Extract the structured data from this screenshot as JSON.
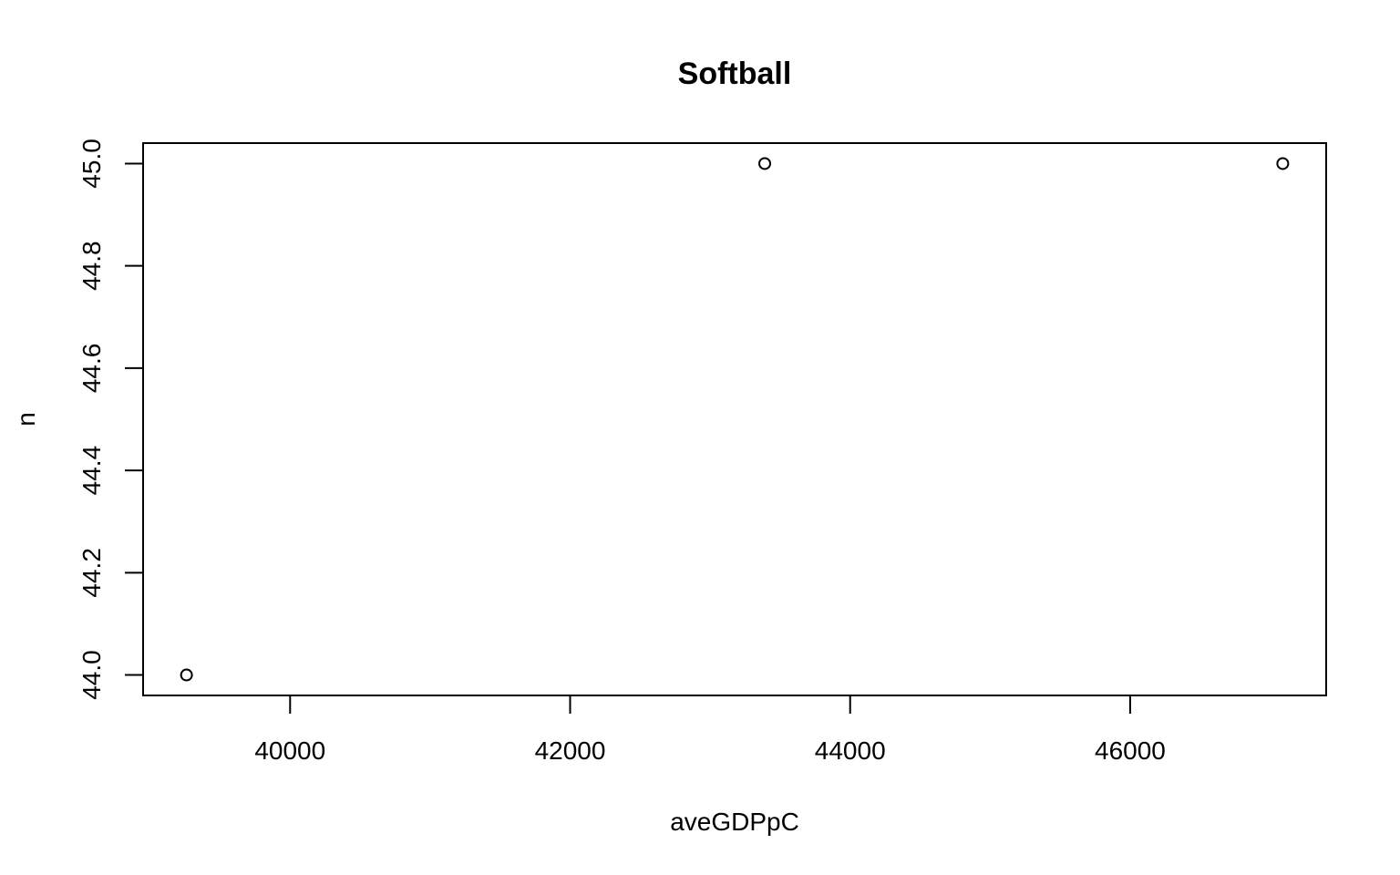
{
  "chart_data": {
    "type": "scatter",
    "title": "Softball",
    "xlabel": "aveGDPpC",
    "ylabel": "n",
    "x": [
      39260,
      43390,
      47090
    ],
    "y": [
      44,
      45,
      45
    ],
    "xlim": [
      38950,
      47400
    ],
    "ylim": [
      43.96,
      45.04
    ],
    "xticks": [
      40000,
      42000,
      44000,
      46000
    ],
    "xtick_labels": [
      "40000",
      "42000",
      "44000",
      "46000"
    ],
    "yticks": [
      44.0,
      44.2,
      44.4,
      44.6,
      44.8,
      45.0
    ],
    "ytick_labels": [
      "44.0",
      "44.2",
      "44.4",
      "44.6",
      "44.8",
      "45.0"
    ],
    "grid": false,
    "marker": "open-circle",
    "colors": {
      "foreground": "#000000",
      "background": "#ffffff"
    }
  }
}
